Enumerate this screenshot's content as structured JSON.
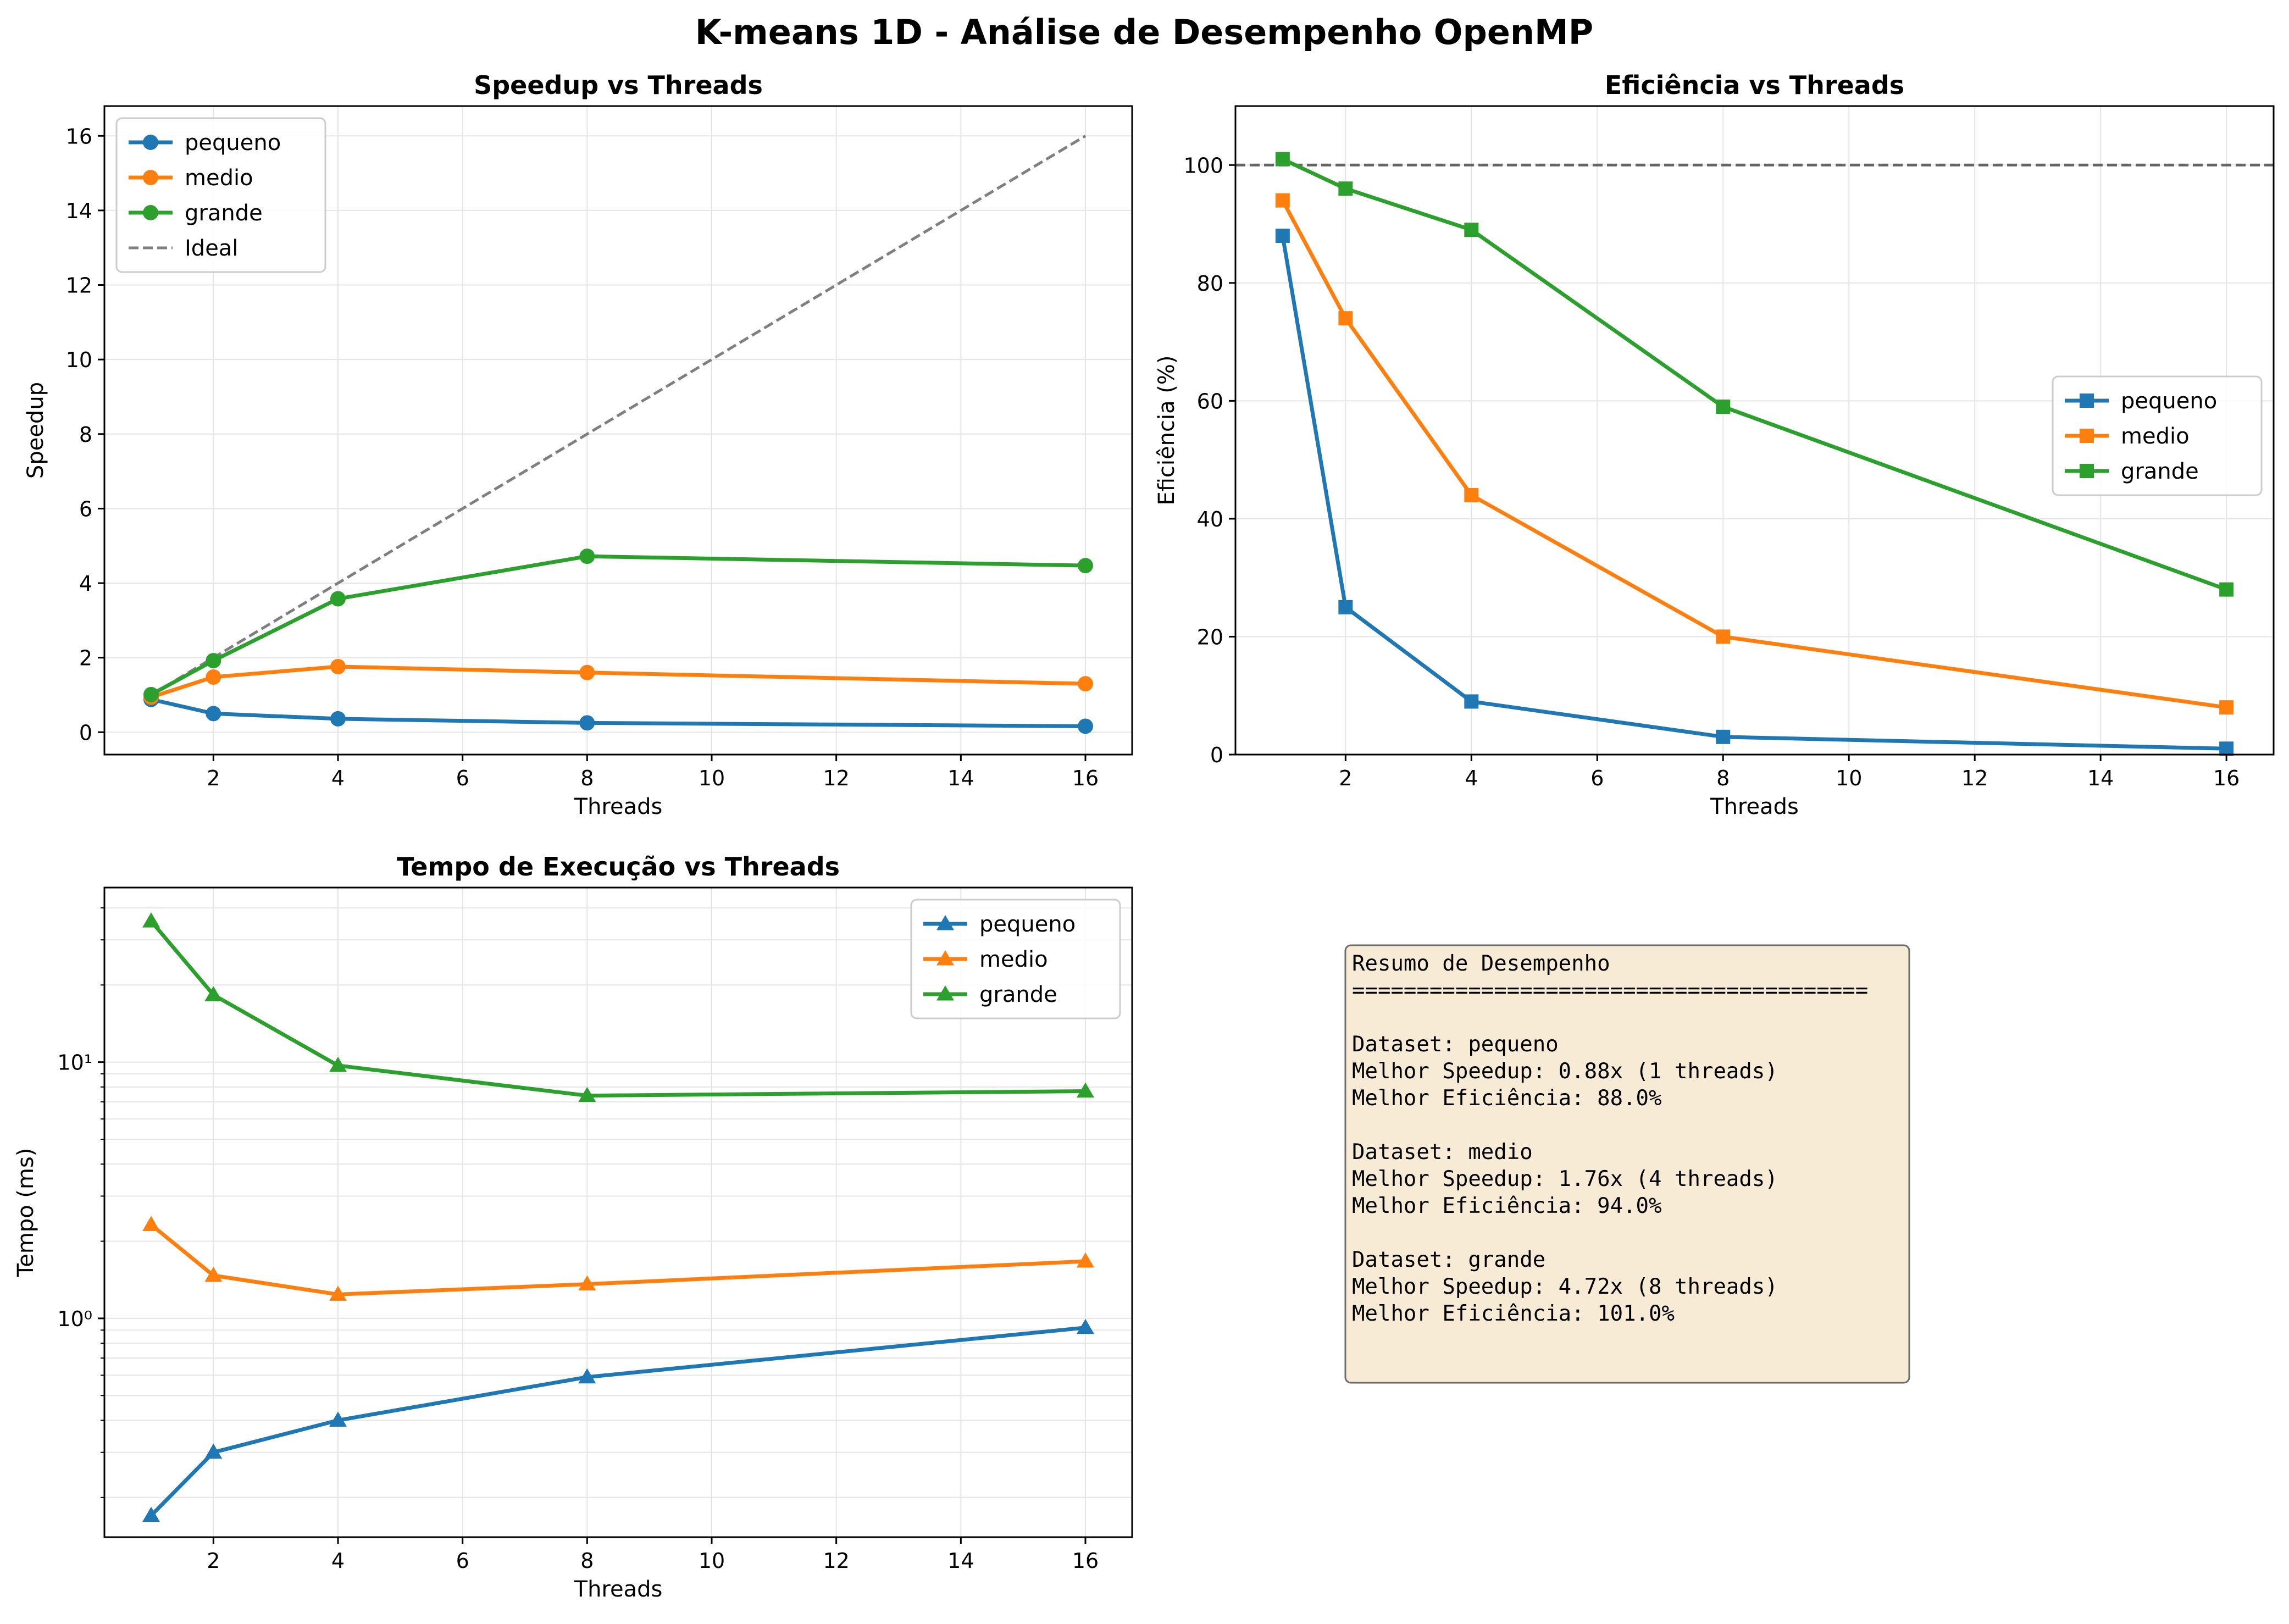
{
  "figure": {
    "suptitle": "K-means 1D - Análise de Desempenho OpenMP"
  },
  "colors": {
    "pequeno": "#1f77b4",
    "medio": "#ff7f0e",
    "grande": "#2ca02c",
    "ideal": "#7f7f7f",
    "grid": "#e5e5e5",
    "summary_bg": "#f7ebd6",
    "summary_border": "#6b6b6b"
  },
  "chart_data": [
    {
      "type": "line",
      "title": "Speedup vs Threads",
      "xlabel": "Threads",
      "ylabel": "Speedup",
      "xlim": [
        0.25,
        16.75
      ],
      "ylim": [
        -0.6,
        16.8
      ],
      "xticks": [
        2,
        4,
        6,
        8,
        10,
        12,
        14,
        16
      ],
      "yticks": [
        0,
        2,
        4,
        6,
        8,
        10,
        12,
        14,
        16
      ],
      "marker": "circle",
      "grid": true,
      "legend_position": "upper-left",
      "x": [
        1,
        2,
        4,
        8,
        16
      ],
      "series": [
        {
          "name": "pequeno",
          "values": [
            0.88,
            0.5,
            0.36,
            0.25,
            0.16
          ]
        },
        {
          "name": "medio",
          "values": [
            0.94,
            1.48,
            1.76,
            1.6,
            1.3
          ]
        },
        {
          "name": "grande",
          "values": [
            1.01,
            1.92,
            3.58,
            4.72,
            4.47
          ]
        }
      ],
      "reference": {
        "name": "Ideal",
        "x": [
          1,
          16
        ],
        "values": [
          1,
          16
        ],
        "style": "dashed"
      }
    },
    {
      "type": "line",
      "title": "Eficiência vs Threads",
      "xlabel": "Threads",
      "ylabel": "Eficiência (%)",
      "xlim": [
        0.25,
        16.75
      ],
      "ylim": [
        0,
        110
      ],
      "xticks": [
        2,
        4,
        6,
        8,
        10,
        12,
        14,
        16
      ],
      "yticks": [
        0,
        20,
        40,
        60,
        80,
        100
      ],
      "marker": "square",
      "grid": true,
      "legend_position": "center-right",
      "x": [
        1,
        2,
        4,
        8,
        16
      ],
      "series": [
        {
          "name": "pequeno",
          "values": [
            88,
            25,
            9,
            3,
            1
          ]
        },
        {
          "name": "medio",
          "values": [
            94,
            74,
            44,
            20,
            8
          ]
        },
        {
          "name": "grande",
          "values": [
            101,
            96,
            89,
            59,
            28
          ]
        }
      ],
      "reference": {
        "value": 100,
        "style": "dashed"
      }
    },
    {
      "type": "line",
      "title": "Tempo de Execução vs Threads",
      "xlabel": "Threads",
      "ylabel": "Tempo (ms)",
      "yscale": "log",
      "xlim": [
        0.25,
        16.75
      ],
      "ylim": [
        0.14,
        48
      ],
      "xticks": [
        2,
        4,
        6,
        8,
        10,
        12,
        14,
        16
      ],
      "yticks_major": [
        1,
        10
      ],
      "ytick_labels": [
        "10⁰",
        "10¹"
      ],
      "marker": "triangle",
      "grid": true,
      "legend_position": "upper-right",
      "x": [
        1,
        2,
        4,
        8,
        16
      ],
      "series": [
        {
          "name": "pequeno",
          "values": [
            0.17,
            0.3,
            0.4,
            0.59,
            0.92
          ]
        },
        {
          "name": "medio",
          "values": [
            2.32,
            1.47,
            1.24,
            1.36,
            1.67
          ]
        },
        {
          "name": "grande",
          "values": [
            35.5,
            18.3,
            9.7,
            7.4,
            7.7
          ]
        }
      ]
    }
  ],
  "summary": {
    "lines": [
      "Resumo de Desempenho",
      "========================================",
      "",
      "Dataset: pequeno",
      "  Melhor Speedup: 0.88x (1 threads)",
      "  Melhor Eficiência: 88.0%",
      "",
      "Dataset: medio",
      "  Melhor Speedup: 1.76x (4 threads)",
      "  Melhor Eficiência: 94.0%",
      "",
      "Dataset: grande",
      "  Melhor Speedup: 4.72x (8 threads)",
      "  Melhor Eficiência: 101.0%"
    ]
  }
}
